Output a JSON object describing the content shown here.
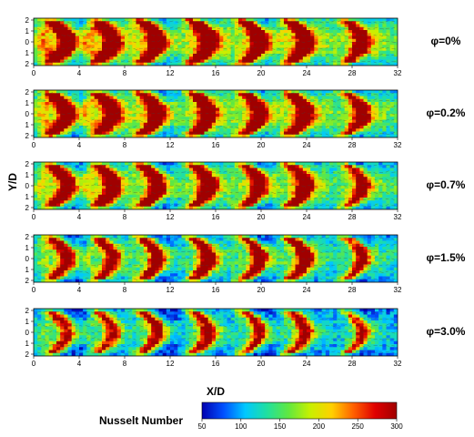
{
  "chart_data": {
    "type": "heatmap",
    "x_ticks": [
      0,
      4,
      8,
      12,
      16,
      20,
      24,
      28,
      32
    ],
    "y_ticks": [
      "2",
      "1",
      "0",
      "1",
      "2"
    ],
    "xlim": [
      0,
      32
    ],
    "ylim": [
      -2,
      2
    ],
    "xlabel": "X/D",
    "ylabel": "Y/D",
    "panels": [
      {
        "label": "φ=0%",
        "jet_x": [
          2,
          6,
          10,
          14.5,
          19,
          23,
          28
        ],
        "intensity": [
          0.8,
          0.78,
          0.95,
          0.95,
          0.9,
          0.88,
          0.78
        ],
        "background": 0.45
      },
      {
        "label": "φ=0.2%",
        "jet_x": [
          2,
          6,
          10,
          14.5,
          19,
          23,
          28
        ],
        "intensity": [
          0.78,
          0.76,
          0.93,
          0.93,
          0.88,
          0.86,
          0.76
        ],
        "background": 0.42
      },
      {
        "label": "φ=0.7%",
        "jet_x": [
          2,
          6,
          10,
          14.5,
          19,
          23,
          28
        ],
        "intensity": [
          0.72,
          0.7,
          0.88,
          0.88,
          0.84,
          0.82,
          0.72
        ],
        "background": 0.38
      },
      {
        "label": "φ=1.5%",
        "jet_x": [
          2,
          6,
          10,
          14.5,
          19,
          23,
          28
        ],
        "intensity": [
          0.62,
          0.6,
          0.78,
          0.8,
          0.78,
          0.76,
          0.66
        ],
        "background": 0.3
      },
      {
        "label": "φ=3.0%",
        "jet_x": [
          2,
          6,
          10,
          14.5,
          19,
          23,
          28
        ],
        "intensity": [
          0.55,
          0.52,
          0.7,
          0.72,
          0.7,
          0.68,
          0.6
        ],
        "background": 0.24
      }
    ],
    "colorbar": {
      "title": "Nusselt Number",
      "ticks": [
        "50",
        "100",
        "150",
        "200",
        "250",
        "300"
      ],
      "range": [
        50,
        300
      ],
      "colors": [
        "#0000b0",
        "#0050ff",
        "#00c8ff",
        "#20e0a0",
        "#60e840",
        "#c8f000",
        "#ffd000",
        "#ff6000",
        "#e00000",
        "#a00000"
      ]
    }
  }
}
